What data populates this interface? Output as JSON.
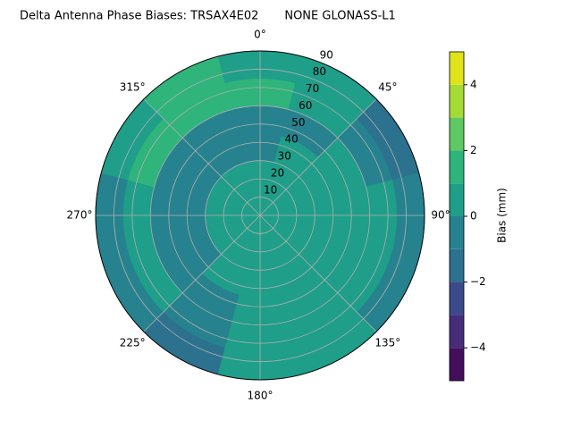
{
  "chart_data": {
    "type": "polar_contour",
    "title": "Delta Antenna Phase Biases: TRSAX4E02       NONE GLONASS-L1",
    "colorbar_label": "Bias (mm)",
    "theta": [
      0,
      30,
      60,
      90,
      120,
      150,
      180,
      210,
      240,
      270,
      300,
      330
    ],
    "r_edges": [
      0,
      15,
      30,
      45,
      60,
      75,
      90
    ],
    "z": [
      [
        0.5,
        0.5,
        0.5,
        0.5,
        0.5,
        0.5,
        0.5,
        0.5,
        0.5,
        0.5,
        0.5,
        0.5
      ],
      [
        0.5,
        0.5,
        0.5,
        0.5,
        0.5,
        0.5,
        0.5,
        0.5,
        0.5,
        0.5,
        0.5,
        0.5
      ],
      [
        -0.5,
        0.5,
        0.5,
        0.5,
        0.5,
        0.5,
        0.5,
        0.5,
        -0.5,
        -0.5,
        -0.5,
        -0.5
      ],
      [
        -0.5,
        -0.5,
        0.5,
        0.5,
        0.5,
        0.5,
        0.5,
        -0.5,
        -0.5,
        -0.5,
        -0.5,
        -0.5
      ],
      [
        1.5,
        0.5,
        -0.5,
        0.5,
        0.5,
        0.5,
        0.5,
        -0.5,
        0.5,
        0.5,
        1.5,
        1.5
      ],
      [
        0.5,
        0.5,
        -1.5,
        -0.5,
        -0.5,
        0.5,
        0.5,
        -1.5,
        -0.5,
        -0.5,
        0.5,
        1.5
      ]
    ],
    "rlim": [
      0,
      90
    ],
    "rticks": [
      10,
      20,
      30,
      40,
      50,
      60,
      70,
      80,
      90
    ],
    "thetaticks": [
      {
        "value": 0,
        "label": "0°"
      },
      {
        "value": 45,
        "label": "45°"
      },
      {
        "value": 90,
        "label": "90°"
      },
      {
        "value": 135,
        "label": "135°"
      },
      {
        "value": 180,
        "label": "180°"
      },
      {
        "value": 225,
        "label": "225°"
      },
      {
        "value": 270,
        "label": "270°"
      },
      {
        "value": 315,
        "label": "315°"
      }
    ],
    "levels": [
      -5,
      -4,
      -3,
      -2,
      -1,
      0,
      1,
      2,
      3,
      4,
      5
    ],
    "colors": [
      "#440f5a",
      "#472c7a",
      "#3b4a8a",
      "#2c718e",
      "#26828e",
      "#1f9e89",
      "#2fb47c",
      "#5ec962",
      "#a5db36",
      "#e0e31a"
    ],
    "clim": [
      -5,
      5
    ],
    "cticks": [
      {
        "value": -4,
        "label": "−4"
      },
      {
        "value": -2,
        "label": "−2"
      },
      0,
      2,
      4
    ],
    "grid": true
  }
}
